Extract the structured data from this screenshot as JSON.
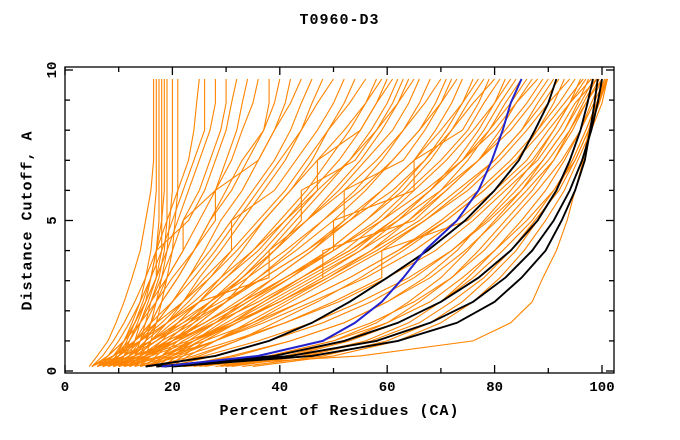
{
  "chart_data": {
    "type": "line",
    "title": "T0960-D3",
    "xlabel": "Percent of Residues (CA)",
    "ylabel": "Distance Cutoff, A",
    "xlim": [
      0,
      102.2
    ],
    "ylim": [
      0,
      10.1
    ],
    "x_major_ticks": [
      0,
      20,
      40,
      60,
      80,
      100
    ],
    "x_minor_ticks": [
      10,
      30,
      50,
      70,
      90
    ],
    "y_major_ticks": [
      0,
      5,
      10
    ],
    "y_minor_ticks": [
      1,
      2,
      3,
      4,
      6,
      7,
      8,
      9
    ],
    "grid": false,
    "legend_position": "none",
    "colors": {
      "prediction_orange": "#ff8400",
      "highlight_black": "#000000",
      "highlight_blue": "#2222cc",
      "axis": "#000000"
    },
    "y_levels": [
      0.15,
      0.5,
      1.0,
      1.6,
      2.3,
      3.1,
      4.0,
      5.0,
      6.0,
      7.0,
      8.0,
      8.9,
      9.7
    ],
    "series": {
      "orange_predictions": [
        [
          8,
          9.5,
          11,
          12.5,
          14,
          15,
          16,
          16.5,
          17,
          17,
          17,
          17,
          17
        ],
        [
          10,
          11,
          12,
          13.5,
          15,
          16,
          17,
          17.5,
          17.5,
          17.5,
          17.5,
          17.5,
          17.5
        ],
        [
          11,
          12,
          13,
          14,
          15.5,
          17,
          18,
          18,
          18,
          18,
          18,
          18,
          18
        ],
        [
          12,
          13,
          14,
          15,
          16,
          17.5,
          18.5,
          19,
          19,
          19,
          19,
          19,
          19
        ],
        [
          13,
          14,
          15,
          16,
          17,
          18,
          19,
          19.5,
          20,
          20,
          20,
          20,
          20
        ],
        [
          9,
          10,
          11.5,
          13,
          14.5,
          16,
          17,
          18,
          18.5,
          18.5,
          18.5,
          18.5,
          18.5
        ],
        [
          14,
          15,
          16,
          17,
          18,
          19,
          20,
          20.5,
          21,
          21,
          21,
          21,
          21
        ],
        [
          4.5,
          6,
          8,
          9.5,
          11,
          12.5,
          14,
          15,
          16,
          16.5,
          16.5,
          16.5,
          16.5
        ],
        [
          5,
          7,
          9,
          11,
          13,
          15,
          17,
          19,
          21,
          23,
          24,
          24.5,
          25
        ],
        [
          6,
          8,
          10,
          12,
          14,
          16,
          18,
          20,
          22,
          24,
          26,
          26,
          26
        ],
        [
          7,
          9,
          11,
          13,
          15,
          17,
          19,
          21,
          23,
          25,
          27,
          28,
          28
        ],
        [
          8,
          10,
          12,
          14,
          16,
          18,
          20,
          22,
          25,
          27,
          29,
          30,
          30
        ],
        [
          5,
          8,
          11,
          13,
          15,
          17,
          17,
          23,
          26,
          28,
          30,
          31,
          32
        ],
        [
          9,
          11,
          13,
          15,
          17,
          19,
          22,
          25,
          28,
          30,
          32,
          33,
          34
        ],
        [
          6,
          9,
          12,
          14,
          16,
          19,
          22,
          22,
          28,
          31,
          33,
          35,
          36
        ],
        [
          10,
          12,
          14,
          16,
          18,
          21,
          24,
          27,
          30,
          33,
          37,
          38,
          38
        ],
        [
          7,
          10,
          13,
          16,
          18,
          21,
          24,
          27,
          31,
          34,
          37,
          39,
          40
        ],
        [
          11,
          13,
          15,
          17,
          20,
          23,
          26,
          29,
          33,
          36,
          39,
          41,
          42
        ],
        [
          5,
          8,
          11,
          14,
          17,
          20,
          24,
          28,
          28,
          36,
          39,
          42,
          44
        ],
        [
          8,
          11,
          14,
          17,
          20,
          23,
          27,
          31,
          35,
          39,
          42,
          44,
          46
        ],
        [
          12,
          14,
          16,
          19,
          22,
          25,
          29,
          33,
          37,
          41,
          44,
          46,
          48
        ],
        [
          6,
          9,
          13,
          16,
          20,
          24,
          28,
          32,
          36,
          40,
          44,
          47,
          50
        ],
        [
          9,
          12,
          15,
          19,
          23,
          27,
          31,
          31,
          39,
          43,
          47,
          50,
          52
        ],
        [
          13,
          15,
          18,
          21,
          25,
          29,
          33,
          37,
          42,
          46,
          49,
          52,
          54
        ],
        [
          7,
          10,
          14,
          18,
          22,
          26,
          31,
          36,
          41,
          45,
          49,
          53,
          56
        ],
        [
          10,
          13,
          17,
          21,
          25,
          30,
          35,
          40,
          45,
          49,
          53,
          56,
          58
        ],
        [
          14,
          16,
          19,
          23,
          27,
          32,
          37,
          42,
          47,
          47,
          55,
          58,
          60
        ],
        [
          5,
          9,
          13,
          17,
          22,
          27,
          32,
          37,
          42,
          47,
          52,
          56,
          59
        ],
        [
          8,
          12,
          16,
          20,
          25,
          30,
          36,
          41,
          46,
          51,
          55,
          58,
          61
        ],
        [
          15,
          17,
          20,
          24,
          28,
          33,
          38,
          43,
          48,
          53,
          57,
          60,
          62
        ],
        [
          16,
          18,
          21,
          25,
          30,
          34,
          39,
          44,
          44,
          54,
          58,
          61,
          63
        ],
        [
          12,
          15,
          19,
          23,
          28,
          33,
          39,
          45,
          50,
          55,
          59,
          62,
          64
        ],
        [
          6,
          10,
          14,
          19,
          24,
          29,
          35,
          41,
          47,
          53,
          58,
          62,
          65
        ],
        [
          9,
          13,
          17,
          22,
          27,
          33,
          39,
          45,
          51,
          56,
          61,
          64,
          66
        ],
        [
          13,
          16,
          20,
          25,
          30,
          36,
          42,
          48,
          54,
          59,
          63,
          66,
          68
        ],
        [
          5,
          9,
          14,
          19,
          25,
          38,
          38,
          45,
          52,
          58,
          63,
          67,
          70
        ],
        [
          10,
          14,
          18,
          24,
          30,
          36,
          43,
          50,
          56,
          61,
          66,
          69,
          71
        ],
        [
          16,
          19,
          23,
          28,
          33,
          39,
          46,
          52,
          52,
          63,
          67,
          70,
          72
        ],
        [
          7,
          11,
          16,
          21,
          27,
          34,
          41,
          48,
          55,
          61,
          66,
          70,
          73
        ],
        [
          11,
          15,
          20,
          26,
          32,
          39,
          46,
          53,
          59,
          65,
          69,
          72,
          74
        ],
        [
          17,
          20,
          24,
          29,
          35,
          42,
          49,
          56,
          62,
          67,
          71,
          74,
          76
        ],
        [
          8,
          12,
          17,
          23,
          30,
          37,
          45,
          52,
          59,
          65,
          70,
          74,
          77
        ],
        [
          14,
          18,
          22,
          28,
          34,
          41,
          49,
          56,
          63,
          68,
          72,
          75,
          78
        ],
        [
          18,
          21,
          25,
          31,
          37,
          44,
          52,
          59,
          65,
          65,
          74,
          77,
          79
        ],
        [
          6,
          11,
          16,
          22,
          29,
          37,
          45,
          53,
          61,
          67,
          72,
          76,
          80
        ],
        [
          12,
          16,
          21,
          27,
          34,
          42,
          50,
          58,
          64,
          70,
          75,
          78,
          81
        ],
        [
          19,
          22,
          26,
          32,
          39,
          47,
          55,
          62,
          68,
          73,
          77,
          80,
          82
        ],
        [
          9,
          14,
          19,
          26,
          33,
          41,
          50,
          50,
          65,
          71,
          76,
          80,
          83
        ],
        [
          15,
          19,
          24,
          30,
          37,
          45,
          54,
          61,
          68,
          74,
          78,
          81,
          84
        ],
        [
          20,
          23,
          28,
          34,
          41,
          49,
          57,
          64,
          70,
          75,
          79,
          82,
          85
        ],
        [
          10,
          15,
          21,
          28,
          36,
          44,
          53,
          61,
          68,
          74,
          79,
          83,
          86
        ],
        [
          16,
          20,
          25,
          32,
          40,
          48,
          48,
          65,
          71,
          77,
          81,
          84,
          87
        ],
        [
          8,
          14,
          20,
          26,
          33,
          41,
          50,
          59,
          67,
          74,
          80,
          84,
          88
        ],
        [
          12,
          18,
          24,
          31,
          38,
          46,
          55,
          64,
          71,
          77,
          82,
          86,
          89
        ],
        [
          6,
          13,
          20,
          28,
          36,
          44,
          53,
          62,
          70,
          77,
          83,
          87,
          90
        ],
        [
          15,
          21,
          28,
          35,
          42,
          50,
          59,
          67,
          74,
          80,
          85,
          88,
          91
        ],
        [
          9,
          16,
          24,
          32,
          40,
          48,
          57,
          66,
          73,
          80,
          85,
          89,
          92
        ],
        [
          18,
          25,
          32,
          39,
          47,
          55,
          63,
          71,
          78,
          84,
          88,
          91,
          93
        ],
        [
          7,
          15,
          23,
          31,
          40,
          49,
          58,
          67,
          75,
          81,
          86,
          90,
          94
        ],
        [
          13,
          20,
          28,
          36,
          44,
          53,
          62,
          70,
          77,
          83,
          88,
          92,
          95
        ],
        [
          22,
          32,
          42,
          52,
          60,
          67,
          73,
          78,
          83,
          87.5,
          91,
          94,
          96
        ],
        [
          10,
          18,
          26,
          35,
          44,
          53,
          62,
          71,
          78,
          84,
          89,
          93,
          96.5
        ],
        [
          16,
          24,
          32,
          41,
          50,
          59,
          59,
          75,
          81,
          87,
          91,
          94,
          97
        ],
        [
          25,
          38,
          50,
          58,
          64,
          70,
          75,
          80,
          85,
          89,
          93,
          95.5,
          97.5
        ],
        [
          11,
          19,
          28,
          37,
          46,
          56,
          65,
          73,
          80,
          86,
          90,
          94,
          98
        ],
        [
          19,
          28,
          38,
          48,
          57,
          65,
          72,
          78.5,
          84,
          89,
          93,
          96,
          98.5
        ],
        [
          28,
          41,
          52,
          60,
          66,
          72,
          77,
          82,
          87,
          91,
          94,
          96.5,
          99
        ],
        [
          14,
          22,
          31,
          41,
          51,
          60,
          69,
          76,
          82,
          88,
          92,
          95,
          99
        ],
        [
          21,
          31,
          42,
          52,
          60,
          68,
          74.5,
          80.5,
          86,
          91,
          94.5,
          97,
          99.5
        ],
        [
          30,
          44,
          56,
          64,
          70,
          75,
          80,
          85,
          89.5,
          93,
          96,
          98,
          100
        ],
        [
          17,
          26,
          36,
          46,
          55,
          64,
          72,
          79,
          85,
          90,
          94,
          97,
          100
        ],
        [
          24,
          36,
          48,
          57,
          65,
          72,
          78,
          83,
          88,
          92.5,
          96,
          98.5,
          100.5
        ],
        [
          33,
          48,
          60,
          68,
          74,
          79,
          84,
          88,
          91.5,
          94.5,
          97,
          99,
          101
        ],
        [
          26,
          38,
          50,
          60,
          68,
          74,
          80,
          86,
          91,
          95,
          97.5,
          99.5,
          101
        ],
        [
          35,
          50,
          62,
          70,
          76,
          81,
          85.5,
          89.5,
          93,
          95.5,
          98,
          100,
          101
        ],
        [
          22,
          55,
          76,
          83,
          87,
          89,
          91.5,
          93.5,
          95,
          96.5,
          97.5,
          99,
          100.5
        ],
        [
          29,
          42,
          53,
          62,
          70,
          76,
          81.5,
          87,
          91,
          94.5,
          97,
          99,
          100.8
        ],
        [
          31,
          45,
          57,
          66,
          72,
          78,
          83,
          87.5,
          92,
          95,
          97.5,
          99.3,
          101
        ]
      ],
      "black_highlighted": [
        [
          15,
          28,
          38,
          46,
          53,
          60,
          67.5,
          74.5,
          80,
          84.5,
          87.5,
          90,
          91.5
        ],
        [
          17,
          39,
          52,
          62,
          70,
          77,
          83,
          88,
          91.5,
          94,
          96,
          97.3,
          98.3
        ],
        [
          18.5,
          42,
          58,
          68,
          76,
          82,
          87,
          91,
          94,
          96.3,
          98,
          99.2,
          100
        ],
        [
          20,
          46,
          62,
          73,
          80,
          85,
          89.5,
          92.5,
          95,
          96.8,
          97.8,
          98.6,
          99.2
        ]
      ],
      "blue_highlighted": [
        [
          18,
          36,
          48,
          54,
          59,
          63,
          67,
          73,
          77,
          79.5,
          81.5,
          83,
          85
        ]
      ]
    }
  }
}
